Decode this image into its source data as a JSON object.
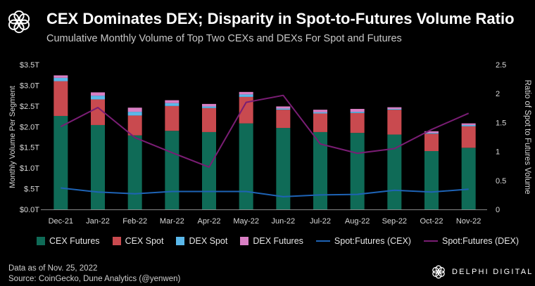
{
  "header": {
    "title": "CEX Dominates DEX; Disparity in Spot-to-Futures Volume Ratio",
    "subtitle": "Cumulative Monthly Volume of Top Two CEXs and DEXs For Spot and Futures"
  },
  "footer": {
    "line1": "Data as of Nov. 25, 2022",
    "line2": "Source: CoinGecko,  Dune Analytics  (@yenwen)"
  },
  "brand": {
    "name": "DELPHI DIGITAL",
    "icon": "delphi-logo-icon"
  },
  "colors": {
    "cex_futures": "#0f6b57",
    "cex_spot": "#c94a4f",
    "dex_spot": "#5ab8ea",
    "dex_futures": "#d97fc4",
    "ratio_cex": "#1e63b5",
    "ratio_dex": "#7a1d74"
  },
  "chart_data": {
    "type": "bar",
    "stacked": true,
    "categories": [
      "Dec-21",
      "Jan-22",
      "Feb-22",
      "Mar-22",
      "Apr-22",
      "May-22",
      "Jun-22",
      "Jul-22",
      "Aug-22",
      "Sep-22",
      "Oct-22",
      "Nov-22"
    ],
    "series": [
      {
        "name": "CEX Futures",
        "values": [
          2.26,
          2.04,
          1.79,
          1.9,
          1.87,
          2.08,
          1.97,
          1.87,
          1.85,
          1.81,
          1.41,
          1.49
        ]
      },
      {
        "name": "CEX Spot",
        "values": [
          0.84,
          0.62,
          0.48,
          0.6,
          0.58,
          0.64,
          0.44,
          0.45,
          0.48,
          0.6,
          0.42,
          0.52
        ]
      },
      {
        "name": "DEX Spot",
        "values": [
          0.08,
          0.09,
          0.09,
          0.07,
          0.04,
          0.06,
          0.03,
          0.03,
          0.03,
          0.02,
          0.02,
          0.03
        ]
      },
      {
        "name": "DEX Futures",
        "values": [
          0.06,
          0.08,
          0.1,
          0.07,
          0.06,
          0.06,
          0.05,
          0.06,
          0.07,
          0.04,
          0.04,
          0.04
        ]
      }
    ],
    "line_series": [
      {
        "name": "Spot:Futures (CEX)",
        "axis": "right",
        "values": [
          0.37,
          0.3,
          0.27,
          0.31,
          0.31,
          0.31,
          0.22,
          0.25,
          0.26,
          0.33,
          0.3,
          0.35
        ]
      },
      {
        "name": "Spot:Futures (DEX)",
        "axis": "right",
        "values": [
          1.43,
          1.76,
          1.24,
          0.98,
          0.73,
          1.85,
          1.97,
          1.13,
          0.97,
          1.05,
          1.38,
          1.66
        ]
      }
    ],
    "ylabel": "Monthly Volume Per Segment",
    "ylabel_right": "Ratio of Spot to Futures Volume",
    "ylim": [
      0,
      3.5
    ],
    "ylim_right": [
      0,
      2.5
    ],
    "y_ticks": [
      "$0.0T",
      "$.5T",
      "$1.0T",
      "$1.5T",
      "$2.0T",
      "$2.5T",
      "$3.0T",
      "$3.5T"
    ],
    "y_ticks_right": [
      "0",
      "0.5",
      "1",
      "1.5",
      "2",
      "2.5"
    ],
    "grid": false,
    "legend": "bottom"
  }
}
